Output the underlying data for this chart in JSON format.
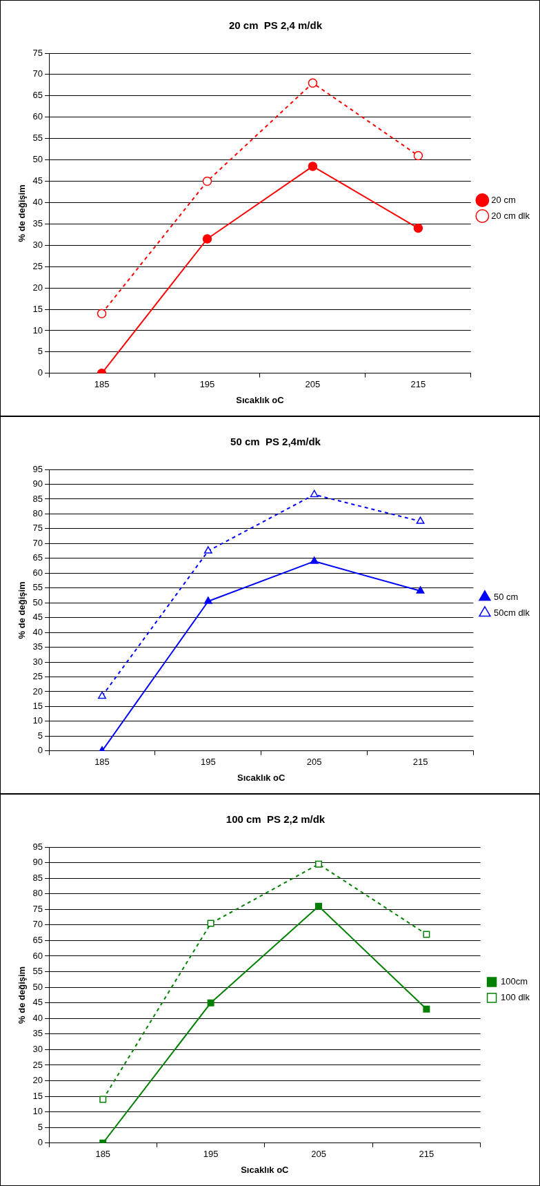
{
  "chart_data": [
    {
      "type": "line",
      "title": "20 cm  PS 2,4 m/dk",
      "xlabel": "Sıcaklık oC",
      "ylabel": "% de değişim",
      "categories": [
        "185",
        "195",
        "205",
        "215"
      ],
      "series": [
        {
          "name": "20 cm",
          "color": "#ff0000",
          "values": [
            0,
            31.5,
            48.5,
            34
          ],
          "marker": "circle",
          "line_style": "solid"
        },
        {
          "name": "20 cm dlk",
          "color": "#ff0000",
          "values": [
            14,
            45,
            68,
            51
          ],
          "marker": "circle",
          "line_style": "dashed"
        }
      ],
      "ylim": [
        0,
        75
      ],
      "yticks": [
        0,
        5,
        10,
        15,
        20,
        25,
        30,
        35,
        40,
        45,
        50,
        55,
        60,
        65,
        70,
        75
      ],
      "grid": "y",
      "legend": "right"
    },
    {
      "type": "line",
      "title": "50 cm  PS 2,4m/dk",
      "xlabel": "Sıcaklık oC",
      "ylabel": "% de değişim",
      "categories": [
        "185",
        "195",
        "205",
        "215"
      ],
      "series": [
        {
          "name": "50 cm",
          "color": "#0000ff",
          "values": [
            0,
            50.5,
            64,
            54
          ],
          "marker": "triangle",
          "line_style": "solid"
        },
        {
          "name": "50cm dlk",
          "color": "#0000ff",
          "values": [
            18.5,
            67.5,
            86.5,
            77.5
          ],
          "marker": "triangle",
          "line_style": "dashed"
        }
      ],
      "ylim": [
        0,
        95
      ],
      "yticks": [
        0,
        5,
        10,
        15,
        20,
        25,
        30,
        35,
        40,
        45,
        50,
        55,
        60,
        65,
        70,
        75,
        80,
        85,
        90,
        95
      ],
      "grid": "y",
      "legend": "right"
    },
    {
      "type": "line",
      "title": "100 cm  PS 2,2 m/dk",
      "xlabel": "Sıcaklık oC",
      "ylabel": "% de değişim",
      "categories": [
        "185",
        "195",
        "205",
        "215"
      ],
      "series": [
        {
          "name": "100cm",
          "color": "#008000",
          "values": [
            0,
            45,
            76,
            43
          ],
          "marker": "square",
          "line_style": "solid"
        },
        {
          "name": "100 dlk",
          "color": "#008000",
          "values": [
            14,
            70.5,
            89.5,
            67
          ],
          "marker": "square",
          "line_style": "dashed"
        }
      ],
      "ylim": [
        0,
        95
      ],
      "yticks": [
        0,
        5,
        10,
        15,
        20,
        25,
        30,
        35,
        40,
        45,
        50,
        55,
        60,
        65,
        70,
        75,
        80,
        85,
        90,
        95
      ],
      "grid": "y",
      "legend": "right"
    }
  ]
}
